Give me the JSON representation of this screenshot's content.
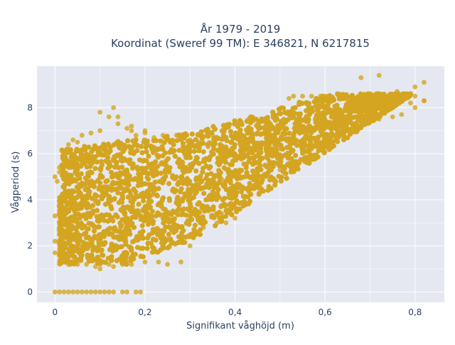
{
  "chart_data": {
    "type": "scatter",
    "title": [
      "År 1979 - 2019",
      "Koordinat (Sweref 99 TM): E 346821, N 6217815"
    ],
    "xlabel": "Signifikant våghöjd (m)",
    "ylabel": "Vågperiod (s)",
    "xlim": [
      -0.04,
      0.865
    ],
    "ylim": [
      -0.45,
      9.8
    ],
    "x_ticks": [
      {
        "value": 0,
        "label": "0"
      },
      {
        "value": 0.2,
        "label": "0,2"
      },
      {
        "value": 0.4,
        "label": "0,4"
      },
      {
        "value": 0.6,
        "label": "0,6"
      },
      {
        "value": 0.8,
        "label": "0,8"
      }
    ],
    "y_ticks": [
      {
        "value": 0,
        "label": "0"
      },
      {
        "value": 2,
        "label": "2"
      },
      {
        "value": 4,
        "label": "4"
      },
      {
        "value": 6,
        "label": "6"
      },
      {
        "value": 8,
        "label": "8"
      }
    ],
    "grid": true,
    "legend": "none",
    "marker_color": "#d4a520",
    "plot_background": "#e5e8f0",
    "series": [
      {
        "x": [
          0.0,
          0.01,
          0.02,
          0.03,
          0.04,
          0.05,
          0.06,
          0.07,
          0.08,
          0.09,
          0.1,
          0.11,
          0.12,
          0.13,
          0.15,
          0.16,
          0.18,
          0.19,
          0.0,
          0.0,
          0.0,
          0.0,
          0.005,
          0.01,
          0.01,
          0.02,
          0.02,
          0.03,
          0.03,
          0.04,
          0.05,
          0.06,
          0.08,
          0.1,
          0.1,
          0.12,
          0.14,
          0.16,
          0.17,
          0.18,
          0.2,
          0.22,
          0.24,
          0.25,
          0.27,
          0.28,
          0.3,
          0.3,
          0.32,
          0.34,
          0.35,
          0.02,
          0.03,
          0.05,
          0.07,
          0.09,
          0.1,
          0.12,
          0.13,
          0.15,
          0.17,
          0.2,
          0.23,
          0.25,
          0.28,
          0.3,
          0.33,
          0.36,
          0.38,
          0.4,
          0.39,
          0.42,
          0.45,
          0.48,
          0.5,
          0.52,
          0.55,
          0.57,
          0.6,
          0.62,
          0.65,
          0.67,
          0.7,
          0.72,
          0.75,
          0.77,
          0.8,
          0.82,
          0.1,
          0.13,
          0.16,
          0.2,
          0.24,
          0.27,
          0.3,
          0.34,
          0.37,
          0.41,
          0.44,
          0.47,
          0.5,
          0.53,
          0.56,
          0.59,
          0.62,
          0.65,
          0.68,
          0.71,
          0.74,
          0.77,
          0.8,
          0.52,
          0.53,
          0.55,
          0.57,
          0.59,
          0.61,
          0.63,
          0.66,
          0.69,
          0.71,
          0.73,
          0.75,
          0.77,
          0.79,
          0.82,
          0.13,
          0.14,
          0.17,
          0.2,
          0.43,
          0.68,
          0.72,
          0.58,
          0.6,
          0.64,
          0.7,
          0.76,
          0.8,
          0.82,
          0.37,
          0.25,
          0.1
        ],
        "y": [
          0.0,
          0.0,
          0.0,
          0.0,
          0.0,
          0.0,
          0.0,
          0.0,
          0.0,
          0.0,
          0.0,
          0.0,
          0.0,
          0.0,
          0.0,
          0.0,
          0.0,
          0.0,
          1.7,
          2.2,
          3.3,
          5.0,
          4.8,
          5.2,
          5.4,
          5.8,
          6.0,
          6.2,
          6.4,
          6.6,
          6.5,
          6.8,
          6.9,
          7.0,
          7.8,
          7.6,
          7.3,
          7.1,
          7.0,
          6.8,
          6.9,
          6.7,
          6.8,
          6.6,
          6.8,
          6.7,
          6.6,
          6.4,
          6.5,
          6.3,
          6.8,
          1.3,
          1.2,
          1.2,
          1.2,
          1.1,
          1.2,
          1.2,
          1.1,
          1.2,
          1.2,
          1.3,
          1.3,
          1.2,
          1.3,
          2.0,
          2.8,
          3.0,
          3.0,
          3.2,
          3.4,
          3.9,
          4.6,
          5.0,
          5.3,
          5.6,
          6.0,
          6.2,
          6.5,
          6.8,
          7.0,
          7.2,
          7.4,
          7.5,
          7.6,
          7.7,
          8.0,
          8.3,
          2.5,
          2.6,
          2.9,
          3.2,
          3.6,
          3.9,
          4.2,
          4.6,
          4.9,
          5.3,
          5.6,
          5.9,
          6.2,
          6.5,
          6.8,
          7.0,
          7.3,
          7.5,
          7.7,
          7.9,
          8.1,
          8.3,
          8.5,
          8.4,
          8.5,
          8.5,
          8.5,
          8.5,
          8.4,
          8.5,
          8.4,
          8.5,
          8.3,
          8.2,
          8.2,
          8.3,
          8.2,
          8.3,
          8.0,
          7.6,
          7.2,
          7.0,
          7.5,
          9.3,
          9.4,
          8.4,
          8.5,
          8.4,
          8.6,
          8.7,
          8.9,
          9.1,
          3.4,
          3.1,
          1.0
        ]
      }
    ]
  }
}
